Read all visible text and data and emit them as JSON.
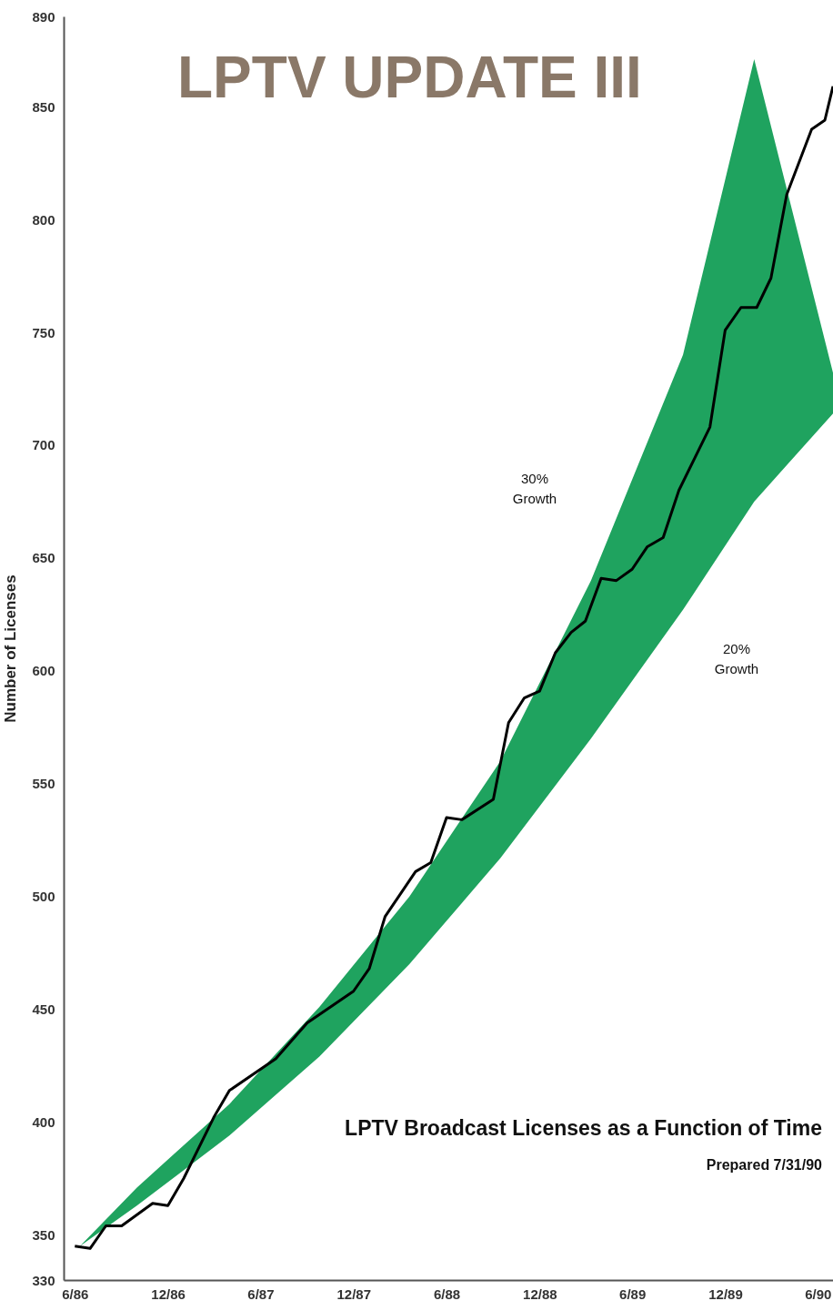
{
  "chart_data": {
    "type": "line",
    "title": "LPTV UPDATE III",
    "subtitle": "LPTV Broadcast Licenses as a Function of Time",
    "ylabel": "Number of Licenses",
    "xlim": [
      "1986-05-10",
      "1990-07-01"
    ],
    "ylim": [
      330,
      890
    ],
    "xticks": [
      {
        "value": "1986-06",
        "label": "6/86"
      },
      {
        "value": "1986-12",
        "label": "12/86"
      },
      {
        "value": "1987-06",
        "label": "6/87"
      },
      {
        "value": "1987-12",
        "label": "12/87"
      },
      {
        "value": "1988-06",
        "label": "6/88"
      },
      {
        "value": "1988-12",
        "label": "12/88"
      },
      {
        "value": "1989-06",
        "label": "6/89"
      },
      {
        "value": "1989-12",
        "label": "12/89"
      },
      {
        "value": "1990-06",
        "label": "6/90"
      }
    ],
    "yticks": [
      330,
      350,
      400,
      450,
      500,
      550,
      600,
      650,
      700,
      750,
      800,
      850,
      890
    ],
    "series": [
      {
        "type": "line",
        "color": "#1fa35f",
        "x": [
          "1986-06-11",
          "1986-10",
          "1987-04",
          "1987-09-25",
          "1988-03-20",
          "1988-09-15",
          "1989-03-12",
          "1989-09-09",
          "1990-01-27",
          "1990-07-01"
        ],
        "values": [
          null,
          null,
          null,
          null,
          null,
          null,
          null,
          null,
          null,
          null
        ],
        "lower": [
          345,
          363,
          394,
          429,
          470,
          517,
          570,
          627,
          675,
          714
        ],
        "upper": [
          345,
          371,
          408,
          451,
          500,
          560,
          640,
          740,
          871,
          732
        ]
      },
      {
        "type": "line",
        "color": "#000000",
        "x": [
          "1986-06",
          "1986-07",
          "1986-08",
          "1986-09",
          "1986-11",
          "1986-12",
          "1987-01",
          "1987-03",
          "1987-04",
          "1987-07",
          "1987-09",
          "1987-12",
          "1988-01",
          "1988-02",
          "1988-04",
          "1988-05",
          "1988-06",
          "1988-07",
          "1988-09",
          "1988-10",
          "1988-11",
          "1988-12",
          "1989-01",
          "1989-02",
          "1989-03",
          "1989-04",
          "1989-05",
          "1989-06",
          "1989-07",
          "1989-08",
          "1989-09",
          "1989-11",
          "1989-12",
          "1990-01",
          "1990-02",
          "1990-03",
          "1990-04",
          "1990-05-20",
          "1990-06-15",
          "1990-07-01"
        ],
        "values": [
          345,
          344,
          354,
          354,
          364,
          363,
          375,
          402,
          414,
          428,
          444,
          458,
          468,
          491,
          511,
          515,
          535,
          534,
          543,
          577,
          588,
          591,
          608,
          617,
          622,
          641,
          640,
          645,
          655,
          659,
          680,
          708,
          751,
          761,
          761,
          774,
          811,
          840,
          844,
          859
        ]
      }
    ],
    "annotations": [
      "30% Growth",
      "20% Growth",
      "Prepared 7/31/90"
    ]
  }
}
